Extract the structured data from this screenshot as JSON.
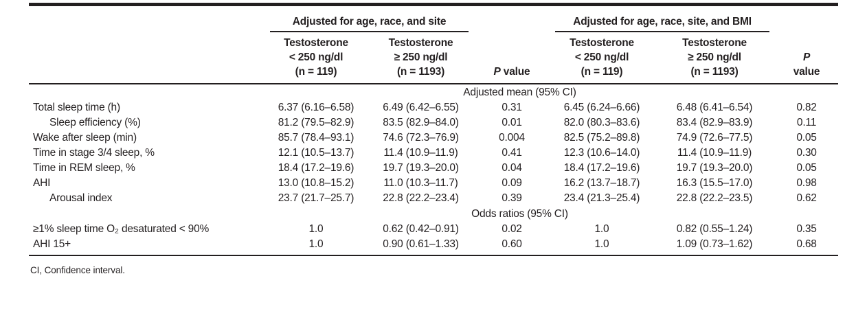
{
  "colors": {
    "text": "#231f20",
    "rule": "#231f20",
    "background": "#ffffff"
  },
  "page": {
    "footnote": "CI, Confidence interval."
  },
  "table": {
    "groups": [
      {
        "label": "Adjusted for age, race, and site"
      },
      {
        "label": "Adjusted for age, race, site, and BMI"
      }
    ],
    "columns": [
      {
        "line1": "Testosterone",
        "line2": "< 250 ng/dl",
        "line3": "(n = 119)"
      },
      {
        "line1": "Testosterone",
        "line2": "≥ 250 ng/dl",
        "line3": "(n = 1193)"
      },
      {
        "p": "P",
        "rest": "value"
      },
      {
        "line1": "Testosterone",
        "line2": "< 250 ng/dl",
        "line3": "(n = 119)"
      },
      {
        "line1": "Testosterone",
        "line2": "≥ 250 ng/dl",
        "line3": "(n = 1193)"
      },
      {
        "p": "P",
        "rest": "value"
      }
    ],
    "sections": [
      {
        "header": "Adjusted mean (95% CI)",
        "rows": [
          {
            "label": "Total sleep time (h)",
            "indent": false,
            "values": [
              "6.37 (6.16–6.58)",
              "6.49 (6.42–6.55)",
              "0.31",
              "6.45 (6.24–6.66)",
              "6.48 (6.41–6.54)",
              "0.82"
            ]
          },
          {
            "label": "Sleep efficiency (%)",
            "indent": true,
            "values": [
              "81.2 (79.5–82.9)",
              "83.5 (82.9–84.0)",
              "0.01",
              "82.0 (80.3–83.6)",
              "83.4 (82.9–83.9)",
              "0.11"
            ]
          },
          {
            "label": "Wake after sleep (min)",
            "indent": false,
            "values": [
              "85.7 (78.4–93.1)",
              "74.6 (72.3–76.9)",
              "0.004",
              "82.5 (75.2–89.8)",
              "74.9 (72.6–77.5)",
              "0.05"
            ]
          },
          {
            "label": "Time in stage 3/4 sleep, %",
            "indent": false,
            "values": [
              "12.1 (10.5–13.7)",
              "11.4 (10.9–11.9)",
              "0.41",
              "12.3 (10.6–14.0)",
              "11.4 (10.9–11.9)",
              "0.30"
            ]
          },
          {
            "label": "Time in REM sleep, %",
            "indent": false,
            "values": [
              "18.4 (17.2–19.6)",
              "19.7 (19.3–20.0)",
              "0.04",
              "18.4 (17.2–19.6)",
              "19.7 (19.3–20.0)",
              "0.05"
            ]
          },
          {
            "label": "AHI",
            "indent": false,
            "values": [
              "13.0 (10.8–15.2)",
              "11.0 (10.3–11.7)",
              "0.09",
              "16.2 (13.7–18.7)",
              "16.3 (15.5–17.0)",
              "0.98"
            ]
          },
          {
            "label": "Arousal index",
            "indent": true,
            "values": [
              "23.7 (21.7–25.7)",
              "22.8 (22.2–23.4)",
              "0.39",
              "23.4 (21.3–25.4)",
              "22.8 (22.2–23.5)",
              "0.62"
            ]
          }
        ]
      },
      {
        "header": "Odds ratios (95% CI)",
        "rows": [
          {
            "label": "≥1% sleep time O₂ desaturated < 90%",
            "indent": false,
            "values": [
              "1.0",
              "0.62 (0.42–0.91)",
              "0.02",
              "1.0",
              "0.82 (0.55–1.24)",
              "0.35"
            ]
          },
          {
            "label": "AHI 15+",
            "indent": false,
            "values": [
              "1.0",
              "0.90 (0.61–1.33)",
              "0.60",
              "1.0",
              "1.09 (0.73–1.62)",
              "0.68"
            ]
          }
        ]
      }
    ]
  }
}
